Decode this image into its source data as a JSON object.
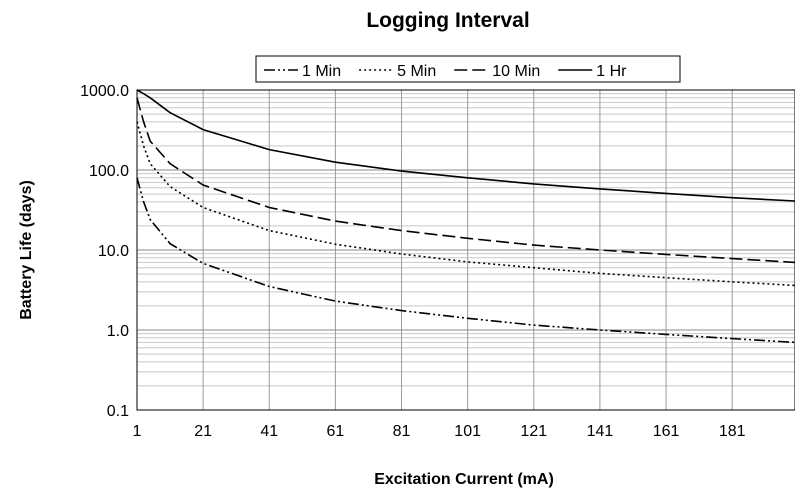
{
  "chart_data": {
    "type": "line",
    "title": "Logging Interval",
    "xlabel": "Excitation Current (mA)",
    "ylabel": "Battery Life (days)",
    "y_scale": "log",
    "ylim": [
      0.1,
      1000
    ],
    "xlim": [
      1,
      200
    ],
    "x_ticks": [
      1,
      21,
      41,
      61,
      81,
      101,
      121,
      141,
      161,
      181
    ],
    "y_ticks": [
      {
        "value": 0.1,
        "label": "0.1"
      },
      {
        "value": 1,
        "label": "1.0"
      },
      {
        "value": 10,
        "label": "10.0"
      },
      {
        "value": 100,
        "label": "100.0"
      },
      {
        "value": 1000,
        "label": "1000.0"
      }
    ],
    "grid": true,
    "legend_position": "top",
    "series": [
      {
        "name": "1 Min",
        "dash": "dash-dot-dot",
        "x": [
          1,
          3,
          5,
          11,
          21,
          41,
          61,
          81,
          101,
          121,
          141,
          161,
          181,
          200
        ],
        "y": [
          80,
          40,
          24,
          12,
          6.8,
          3.5,
          2.3,
          1.75,
          1.4,
          1.15,
          1.0,
          0.88,
          0.78,
          0.7
        ]
      },
      {
        "name": "5 Min",
        "dash": "dotted",
        "x": [
          1,
          3,
          5,
          11,
          21,
          41,
          61,
          81,
          101,
          121,
          141,
          161,
          181,
          200
        ],
        "y": [
          400,
          200,
          120,
          62,
          34,
          17.5,
          11.8,
          8.9,
          7.1,
          6.0,
          5.1,
          4.5,
          4.0,
          3.6
        ]
      },
      {
        "name": "10 Min",
        "dash": "dashed",
        "x": [
          1,
          3,
          5,
          11,
          21,
          41,
          61,
          81,
          101,
          121,
          141,
          161,
          181,
          200
        ],
        "y": [
          800,
          400,
          230,
          120,
          65,
          34,
          23,
          17.5,
          14,
          11.5,
          10,
          8.8,
          7.8,
          7.0
        ]
      },
      {
        "name": "1 Hr",
        "dash": "solid",
        "x": [
          1,
          3,
          5,
          11,
          21,
          41,
          61,
          81,
          101,
          121,
          141,
          161,
          181,
          200
        ],
        "y": [
          1000,
          900,
          800,
          520,
          320,
          180,
          125,
          97,
          80,
          67,
          58,
          51,
          45,
          41
        ]
      }
    ]
  }
}
